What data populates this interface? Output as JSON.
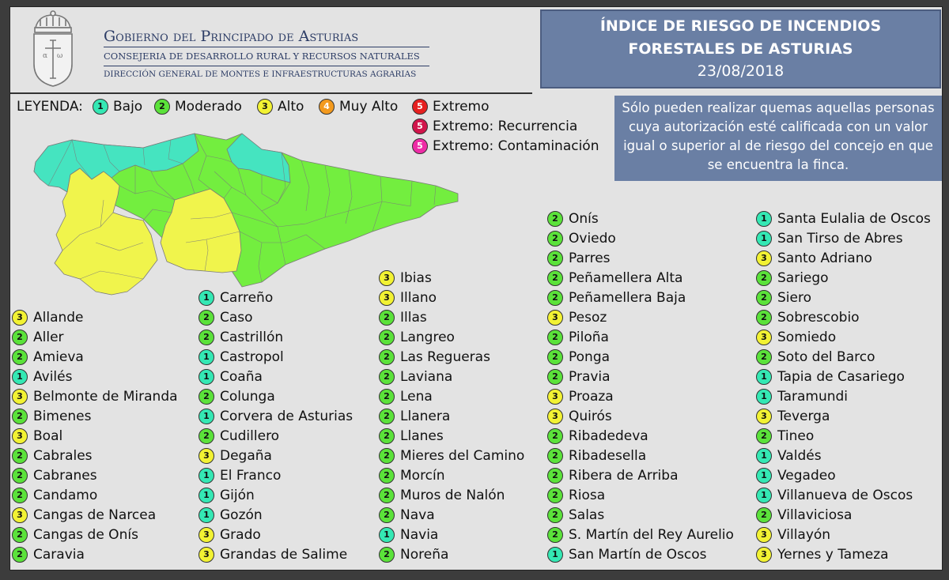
{
  "header": {
    "gov_title": "Gobierno del Principado de Asturias",
    "gov_line1": "CONSEJERIA DE DESARROLLO RURAL Y RECURSOS NATURALES",
    "gov_line2": "DIRECCIÓN GENERAL DE MONTES E INFRAESTRUCTURAS AGRARIAS",
    "title_line1": "ÍNDICE DE RIESGO DE INCENDIOS",
    "title_line2": "FORESTALES DE ASTURIAS",
    "date": "23/08/2018"
  },
  "notice": "Sólo pueden realizar quemas aquellas personas cuya autorización esté calificada con un valor igual o superior al de riesgo del concejo en que se encuentra la finca.",
  "legend": {
    "label": "LEYENDA:",
    "items": [
      {
        "level": "1",
        "text": "Bajo"
      },
      {
        "level": "2",
        "text": "Moderado"
      },
      {
        "level": "3",
        "text": "Alto"
      },
      {
        "level": "4",
        "text": "Muy Alto"
      },
      {
        "level": "5",
        "text": "Extremo"
      },
      {
        "level": "5",
        "text": "Extremo: Recurrencia"
      },
      {
        "level": "5",
        "text": "Extremo: Contaminación"
      }
    ]
  },
  "colors": {
    "1": "#34e8b4",
    "2": "#5be23a",
    "3": "#f2f233",
    "4": "#f39a1e",
    "5": "#e62020",
    "5r": "#d1154b",
    "5c": "#ee2ca6",
    "map_1": "#45e4c0",
    "map_2": "#73ee3f",
    "map_3": "#f0f44c"
  },
  "columns": [
    [
      {
        "name": "Allande",
        "level": "3"
      },
      {
        "name": "Aller",
        "level": "2"
      },
      {
        "name": "Amieva",
        "level": "2"
      },
      {
        "name": "Avilés",
        "level": "1"
      },
      {
        "name": "Belmonte de Miranda",
        "level": "3"
      },
      {
        "name": "Bimenes",
        "level": "2"
      },
      {
        "name": "Boal",
        "level": "3"
      },
      {
        "name": "Cabrales",
        "level": "2"
      },
      {
        "name": "Cabranes",
        "level": "2"
      },
      {
        "name": "Candamo",
        "level": "2"
      },
      {
        "name": "Cangas de Narcea",
        "level": "3"
      },
      {
        "name": "Cangas de Onís",
        "level": "2"
      },
      {
        "name": "Caravia",
        "level": "2"
      }
    ],
    [
      {
        "name": "Carreño",
        "level": "1"
      },
      {
        "name": "Caso",
        "level": "2"
      },
      {
        "name": "Castrillón",
        "level": "2"
      },
      {
        "name": "Castropol",
        "level": "1"
      },
      {
        "name": "Coaña",
        "level": "1"
      },
      {
        "name": "Colunga",
        "level": "2"
      },
      {
        "name": "Corvera de Asturias",
        "level": "1"
      },
      {
        "name": "Cudillero",
        "level": "2"
      },
      {
        "name": "Degaña",
        "level": "3"
      },
      {
        "name": "El Franco",
        "level": "1"
      },
      {
        "name": "Gijón",
        "level": "1"
      },
      {
        "name": "Gozón",
        "level": "1"
      },
      {
        "name": "Grado",
        "level": "3"
      },
      {
        "name": "Grandas de Salime",
        "level": "3"
      }
    ],
    [
      {
        "name": "Ibias",
        "level": "3"
      },
      {
        "name": "Illano",
        "level": "3"
      },
      {
        "name": "Illas",
        "level": "2"
      },
      {
        "name": "Langreo",
        "level": "2"
      },
      {
        "name": "Las Regueras",
        "level": "2"
      },
      {
        "name": "Laviana",
        "level": "2"
      },
      {
        "name": "Lena",
        "level": "2"
      },
      {
        "name": "Llanera",
        "level": "2"
      },
      {
        "name": "Llanes",
        "level": "2"
      },
      {
        "name": "Mieres del Camino",
        "level": "2"
      },
      {
        "name": "Morcín",
        "level": "2"
      },
      {
        "name": "Muros de Nalón",
        "level": "2"
      },
      {
        "name": "Nava",
        "level": "2"
      },
      {
        "name": "Navia",
        "level": "1"
      },
      {
        "name": "Noreña",
        "level": "2"
      }
    ],
    [
      {
        "name": "Onís",
        "level": "2"
      },
      {
        "name": "Oviedo",
        "level": "2"
      },
      {
        "name": "Parres",
        "level": "2"
      },
      {
        "name": "Peñamellera Alta",
        "level": "2"
      },
      {
        "name": "Peñamellera Baja",
        "level": "2"
      },
      {
        "name": "Pesoz",
        "level": "3"
      },
      {
        "name": "Piloña",
        "level": "2"
      },
      {
        "name": "Ponga",
        "level": "2"
      },
      {
        "name": "Pravia",
        "level": "2"
      },
      {
        "name": "Proaza",
        "level": "3"
      },
      {
        "name": "Quirós",
        "level": "3"
      },
      {
        "name": "Ribadedeva",
        "level": "2"
      },
      {
        "name": "Ribadesella",
        "level": "2"
      },
      {
        "name": "Ribera de Arriba",
        "level": "2"
      },
      {
        "name": "Riosa",
        "level": "2"
      },
      {
        "name": "Salas",
        "level": "2"
      },
      {
        "name": "S. Martín del Rey Aurelio",
        "level": "2"
      },
      {
        "name": "San Martín de Oscos",
        "level": "1"
      }
    ],
    [
      {
        "name": "Santa Eulalia de Oscos",
        "level": "1"
      },
      {
        "name": "San Tirso de Abres",
        "level": "1"
      },
      {
        "name": "Santo Adriano",
        "level": "3"
      },
      {
        "name": "Sariego",
        "level": "2"
      },
      {
        "name": "Siero",
        "level": "2"
      },
      {
        "name": "Sobrescobio",
        "level": "2"
      },
      {
        "name": "Somiedo",
        "level": "3"
      },
      {
        "name": "Soto del Barco",
        "level": "2"
      },
      {
        "name": "Tapia de Casariego",
        "level": "1"
      },
      {
        "name": "Taramundi",
        "level": "1"
      },
      {
        "name": "Teverga",
        "level": "3"
      },
      {
        "name": "Tineo",
        "level": "2"
      },
      {
        "name": "Valdés",
        "level": "1"
      },
      {
        "name": "Vegadeo",
        "level": "1"
      },
      {
        "name": "Villanueva de Oscos",
        "level": "1"
      },
      {
        "name": "Villaviciosa",
        "level": "2"
      },
      {
        "name": "Villayón",
        "level": "3"
      },
      {
        "name": "Yernes y Tameza",
        "level": "3"
      }
    ]
  ]
}
